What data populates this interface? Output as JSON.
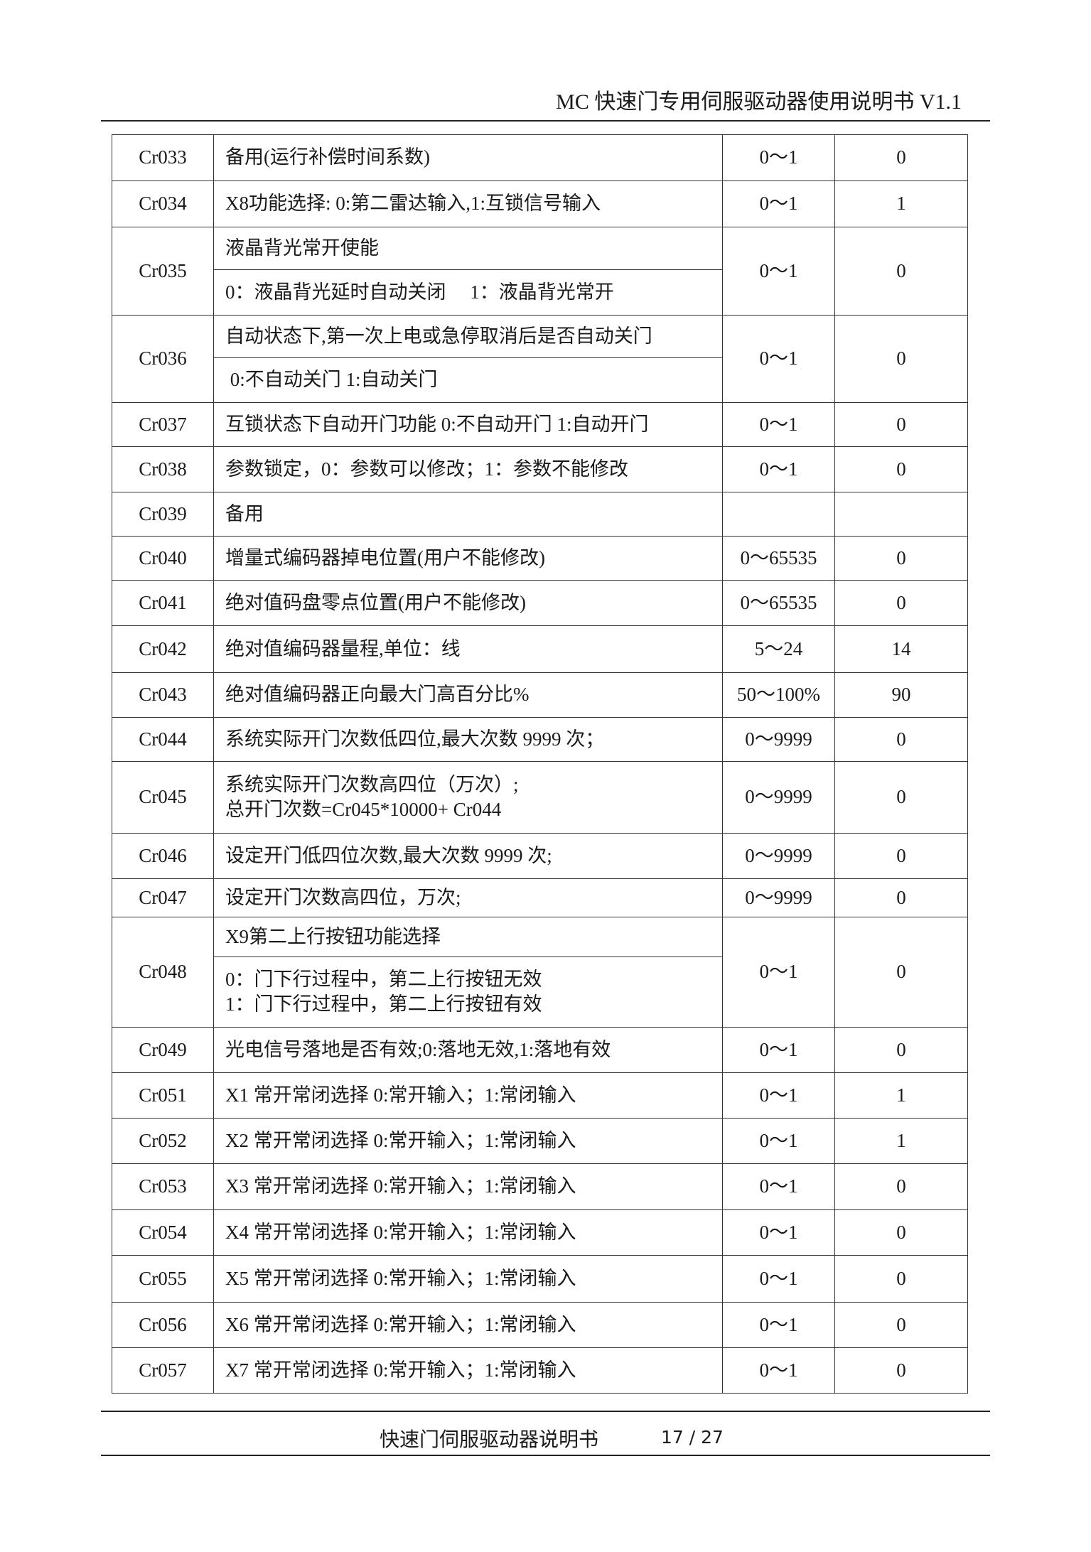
{
  "header": {
    "title": "MC 快速门专用伺服驱动器使用说明书 V1.1"
  },
  "rows": [
    {
      "code": "Cr033",
      "desc": [
        "备用(运行补偿时间系数)"
      ],
      "range": "0～1",
      "default": "0"
    },
    {
      "code": "Cr034",
      "desc": [
        "X8功能选择: 0:第二雷达输入,1:互锁信号输入"
      ],
      "range": "0～1",
      "default": "1"
    },
    {
      "code": "Cr035",
      "sub": [
        "液晶背光常开使能",
        "0：液晶背光延时自动关闭　 1：液晶背光常开"
      ],
      "range": "0～1",
      "default": "0"
    },
    {
      "code": "Cr036",
      "sub": [
        "自动状态下,第一次上电或急停取消后是否自动关门",
        " 0:不自动关门 1:自动关门"
      ],
      "range": "0～1",
      "default": "0"
    },
    {
      "code": "Cr037",
      "desc": [
        "互锁状态下自动开门功能 0:不自动开门 1:自动开门"
      ],
      "range": "0～1",
      "default": "0"
    },
    {
      "code": "Cr038",
      "desc": [
        "参数锁定，0：参数可以修改；1：参数不能修改"
      ],
      "range": "0～1",
      "default": "0"
    },
    {
      "code": "Cr039",
      "desc": [
        "备用"
      ],
      "range": "",
      "default": ""
    },
    {
      "code": "Cr040",
      "desc": [
        "增量式编码器掉电位置(用户不能修改)"
      ],
      "range": "0～65535",
      "default": "0"
    },
    {
      "code": "Cr041",
      "desc": [
        "绝对值码盘零点位置(用户不能修改)"
      ],
      "range": "0～65535",
      "default": "0"
    },
    {
      "code": "Cr042",
      "desc": [
        "绝对值编码器量程,单位：线"
      ],
      "range": "5～24",
      "default": "14"
    },
    {
      "code": "Cr043",
      "desc": [
        "绝对值编码器正向最大门高百分比%"
      ],
      "range": "50～100%",
      "default": "90"
    },
    {
      "code": "Cr044",
      "desc": [
        "系统实际开门次数低四位,最大次数 9999 次；"
      ],
      "range": "0～9999",
      "default": "0"
    },
    {
      "code": "Cr045",
      "desc": [
        "系统实际开门次数高四位（万次）;",
        "总开门次数=Cr045*10000+ Cr044"
      ],
      "range": "0～9999",
      "default": "0"
    },
    {
      "code": "Cr046",
      "desc": [
        "设定开门低四位次数,最大次数 9999 次;"
      ],
      "range": "0～9999",
      "default": "0"
    },
    {
      "code": "Cr047",
      "desc": [
        "设定开门次数高四位，万次;"
      ],
      "range": "0～9999",
      "default": "0"
    },
    {
      "code": "Cr048",
      "sub": [
        "X9第二上行按钮功能选择",
        "0：门下行过程中，第二上行按钮无效\n1：门下行过程中，第二上行按钮有效"
      ],
      "range": "0～1",
      "default": "0"
    },
    {
      "code": "Cr049",
      "desc": [
        "光电信号落地是否有效;0:落地无效,1:落地有效"
      ],
      "range": "0～1",
      "default": "0"
    },
    {
      "code": "Cr051",
      "desc": [
        "X1 常开常闭选择 0:常开输入；1:常闭输入"
      ],
      "range": "0～1",
      "default": "1"
    },
    {
      "code": "Cr052",
      "desc": [
        "X2 常开常闭选择 0:常开输入；1:常闭输入"
      ],
      "range": "0～1",
      "default": "1"
    },
    {
      "code": "Cr053",
      "desc": [
        "X3 常开常闭选择 0:常开输入；1:常闭输入"
      ],
      "range": "0～1",
      "default": "0"
    },
    {
      "code": "Cr054",
      "desc": [
        "X4 常开常闭选择 0:常开输入；1:常闭输入"
      ],
      "range": "0～1",
      "default": "0"
    },
    {
      "code": "Cr055",
      "desc": [
        "X5 常开常闭选择 0:常开输入；1:常闭输入"
      ],
      "range": "0～1",
      "default": "0"
    },
    {
      "code": "Cr056",
      "desc": [
        "X6 常开常闭选择 0:常开输入；1:常闭输入"
      ],
      "range": "0～1",
      "default": "0"
    },
    {
      "code": "Cr057",
      "desc": [
        "X7 常开常闭选择 0:常开输入；1:常闭输入"
      ],
      "range": "0～1",
      "default": "0"
    }
  ],
  "footer": {
    "title": "快速门伺服驱动器说明书",
    "page": "17 / 27"
  }
}
